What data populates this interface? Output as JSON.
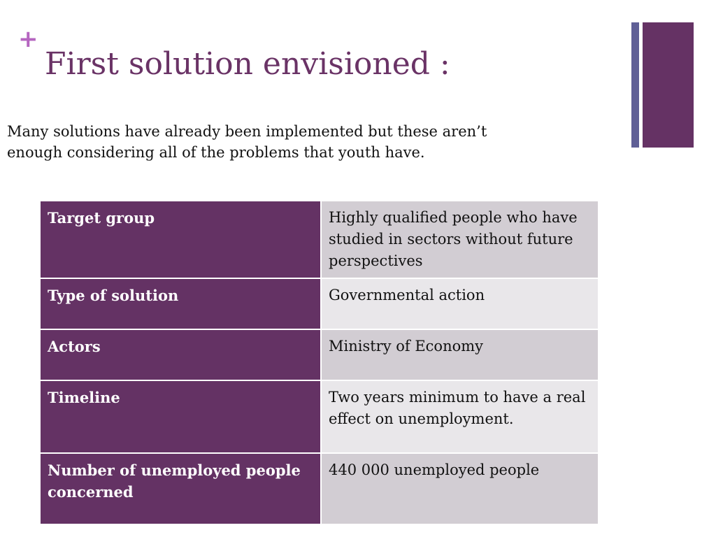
{
  "slide": {
    "plus_symbol": "+",
    "title": "First solution envisioned :",
    "intro_line1": "Many solutions have already been implemented but these aren’t",
    "intro_line2": "enough  considering all of the problems that youth have."
  },
  "colors": {
    "title": "#6a3366",
    "plus": "#b565c0",
    "label_cell": "#643264",
    "value_cell_dark": "#d2cdd3",
    "value_cell_light": "#e9e7ea",
    "deco_thin": "#5f5f96",
    "deco_thick": "#653264"
  },
  "table": {
    "rows": [
      {
        "label": "Target group",
        "value": "Highly qualified people who have studied in sectors without future perspectives"
      },
      {
        "label": "Type of solution",
        "value": "Governmental action"
      },
      {
        "label": "Actors",
        "value": "Ministry of Economy"
      },
      {
        "label": "Timeline",
        "value": "Two years minimum to have a real effect on unemployment."
      },
      {
        "label": "Number of unemployed people concerned",
        "value": "440 000 unemployed people"
      }
    ]
  }
}
